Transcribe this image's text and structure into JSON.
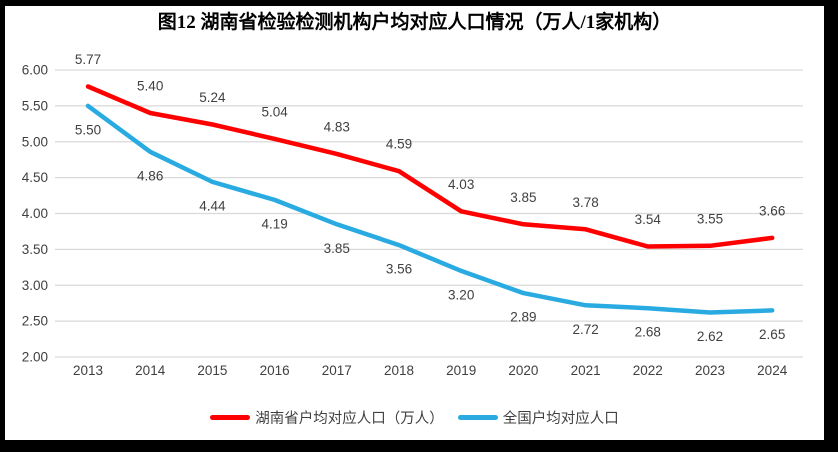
{
  "title": "图12 湖南省检验检测机构户均对应人口情况（万人/1家机构）",
  "frame": {
    "border_color": "#000000",
    "background_color": "#ffffff"
  },
  "chart_data": {
    "type": "line",
    "title": "图12 湖南省检验检测机构户均对应人口情况（万人/1家机构）",
    "categories": [
      "2013",
      "2014",
      "2015",
      "2016",
      "2017",
      "2018",
      "2019",
      "2020",
      "2021",
      "2022",
      "2023",
      "2024"
    ],
    "series": [
      {
        "name": "湖南省户均对应人口（万人）",
        "color": "#FF0000",
        "values": [
          5.77,
          5.4,
          5.24,
          5.04,
          4.83,
          4.59,
          4.03,
          3.85,
          3.78,
          3.54,
          3.55,
          3.66
        ],
        "labels": [
          "5.77",
          "5.40",
          "5.24",
          "5.04",
          "4.83",
          "4.59",
          "4.03",
          "3.85",
          "3.78",
          "3.54",
          "3.55",
          "3.66"
        ],
        "label_position": "above"
      },
      {
        "name": "全国户均对应人口",
        "color": "#29ABE2",
        "values": [
          5.5,
          4.86,
          4.44,
          4.19,
          3.85,
          3.56,
          3.2,
          2.89,
          2.72,
          2.68,
          2.62,
          2.65
        ],
        "labels": [
          "5.50",
          "4.86",
          "4.44",
          "4.19",
          "3.85",
          "3.56",
          "3.20",
          "2.89",
          "2.72",
          "2.68",
          "2.62",
          "2.65"
        ],
        "label_position": "below"
      }
    ],
    "xlabel": "",
    "ylabel": "",
    "ylim": [
      2.0,
      6.0
    ],
    "ytick_step": 0.5,
    "ytick_labels": [
      "6.00",
      "5.50",
      "5.00",
      "4.50",
      "4.00",
      "3.50",
      "3.00",
      "2.50",
      "2.00"
    ],
    "grid": true,
    "gridline_color": "#D9D9D9",
    "axis_label_color": "#404040",
    "data_label_color": "#404040",
    "legend_position": "bottom"
  }
}
